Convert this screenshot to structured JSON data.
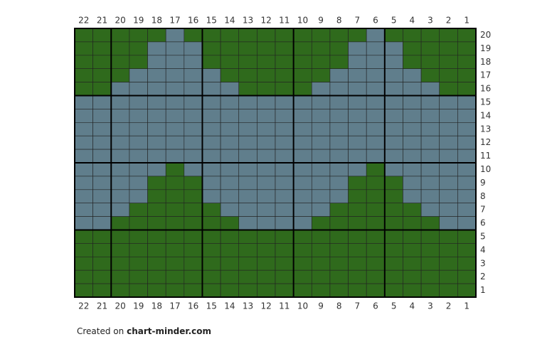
{
  "chart": {
    "column_labels": [
      22,
      21,
      20,
      19,
      18,
      17,
      16,
      15,
      14,
      13,
      12,
      11,
      10,
      9,
      8,
      7,
      6,
      5,
      4,
      3,
      2,
      1
    ],
    "row_labels": [
      20,
      19,
      18,
      17,
      16,
      15,
      14,
      13,
      12,
      11,
      10,
      9,
      8,
      7,
      6,
      5,
      4,
      3,
      2,
      1
    ],
    "palette": {
      "G": "#2f6a1c",
      "B": "#607e8c"
    },
    "rows": [
      "GGGGGBGGGGGGGGGGBGGGGG",
      "GGGGBBBGGGGGGGGBBBGGGG",
      "GGGGBBBGGGGGGGGBBBGGGG",
      "GGGBBBBBGGGGGGBBBBBGGG",
      "GGBBBBBBBGGGGBBBBBBBGG",
      "BBBBBBBBBBBBBBBBBBBBBB",
      "BBBBBBBBBBBBBBBBBBBBBB",
      "BBBBBBBBBBBBBBBBBBBBBB",
      "BBBBBBBBBBBBBBBBBBBBBB",
      "BBBBBBBBBBBBBBBBBBBBBB",
      "BBBBBGBBBBBBBBBBGBBBBB",
      "BBBBGGGBBBBBBBBGGGBBBB",
      "BBBBGGGBBBBBBBBGGGBBBB",
      "BBBGGGGGBBBBBBGGGGGBBB",
      "BBGGGGGGGBBBBGGGGGGGBB",
      "GGGGGGGGGGGGGGGGGGGGGG",
      "GGGGGGGGGGGGGGGGGGGGGG",
      "GGGGGGGGGGGGGGGGGGGGGG",
      "GGGGGGGGGGGGGGGGGGGGGG",
      "GGGGGGGGGGGGGGGGGGGGGG"
    ]
  },
  "footer": {
    "prefix": "Created on",
    "site": "chart-minder.com"
  }
}
